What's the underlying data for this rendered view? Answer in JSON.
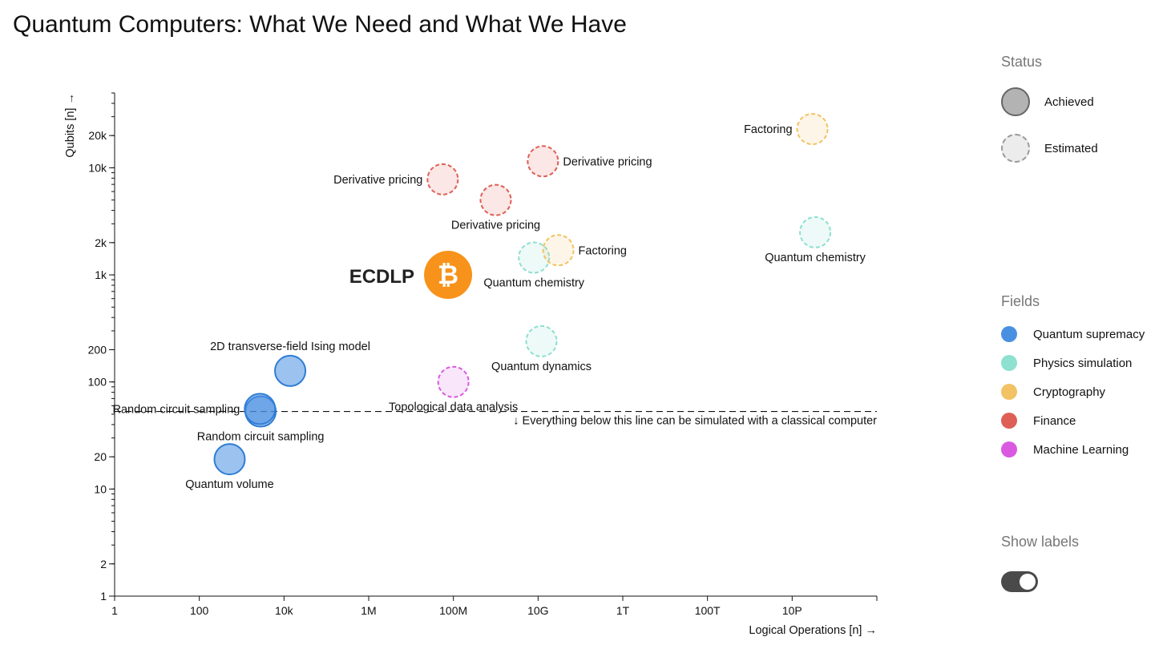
{
  "title": "Quantum Computers: What We Need and What We Have",
  "chart_data": {
    "type": "scatter",
    "title": "Quantum Computers: What We Need and What We Have",
    "xlabel": "Logical Operations [n] →",
    "ylabel": "Qubits [n] →",
    "xscale": "log",
    "yscale": "log",
    "xlim": [
      1,
      1e+18
    ],
    "ylim": [
      1,
      50000
    ],
    "x_ticks": [
      {
        "value": 1,
        "label": "1"
      },
      {
        "value": 100,
        "label": "100"
      },
      {
        "value": 10000,
        "label": "10k"
      },
      {
        "value": 1000000,
        "label": "1M"
      },
      {
        "value": 100000000,
        "label": "100M"
      },
      {
        "value": 10000000000,
        "label": "10G"
      },
      {
        "value": 1000000000000,
        "label": "1T"
      },
      {
        "value": 100000000000000,
        "label": "100T"
      },
      {
        "value": 10000000000000000,
        "label": "10P"
      }
    ],
    "y_ticks": [
      {
        "value": 1,
        "label": "1"
      },
      {
        "value": 2,
        "label": "2"
      },
      {
        "value": 10,
        "label": "10"
      },
      {
        "value": 20,
        "label": "20"
      },
      {
        "value": 100,
        "label": "100"
      },
      {
        "value": 200,
        "label": "200"
      },
      {
        "value": 1000,
        "label": "1k"
      },
      {
        "value": 2000,
        "label": "2k"
      },
      {
        "value": 10000,
        "label": "10k"
      },
      {
        "value": 20000,
        "label": "20k"
      }
    ],
    "threshold": {
      "qubits": 53,
      "label": "↓ Everything below this line can be simulated with a classical computer"
    },
    "annotation": {
      "text": "ECDLP",
      "x": 75000000,
      "y": 1000,
      "icon": "bitcoin-icon",
      "icon_glyph": "₿",
      "icon_color": "#F7931A"
    },
    "points": [
      {
        "label": "Quantum volume",
        "x": 520,
        "y": 19,
        "field": "Quantum supremacy",
        "status": "Achieved",
        "label_pos": "below"
      },
      {
        "label": "Random circuit sampling",
        "x": 2800,
        "y": 53,
        "field": "Quantum supremacy",
        "status": "Achieved",
        "label_pos": "below"
      },
      {
        "label": "Random circuit sampling",
        "x": 2700,
        "y": 56,
        "field": "Quantum supremacy",
        "status": "Achieved",
        "label_pos": "left"
      },
      {
        "label": "2D transverse-field Ising model",
        "x": 14000,
        "y": 127,
        "field": "Quantum supremacy",
        "status": "Achieved",
        "label_pos": "above"
      },
      {
        "label": "Topological data analysis",
        "x": 100000000,
        "y": 100,
        "field": "Machine Learning",
        "status": "Estimated",
        "label_pos": "below"
      },
      {
        "label": "Quantum dynamics",
        "x": 12000000000,
        "y": 240,
        "field": "Physics simulation",
        "status": "Estimated",
        "label_pos": "below"
      },
      {
        "label": "Quantum chemistry",
        "x": 8000000000,
        "y": 1450,
        "field": "Physics simulation",
        "status": "Estimated",
        "label_pos": "below"
      },
      {
        "label": "Factoring",
        "x": 30000000000,
        "y": 1700,
        "field": "Cryptography",
        "status": "Estimated",
        "label_pos": "right"
      },
      {
        "label": "Derivative pricing",
        "x": 1000000000,
        "y": 5000,
        "field": "Finance",
        "status": "Estimated",
        "label_pos": "below"
      },
      {
        "label": "Derivative pricing",
        "x": 56000000,
        "y": 7800,
        "field": "Finance",
        "status": "Estimated",
        "label_pos": "left"
      },
      {
        "label": "Derivative pricing",
        "x": 13000000000,
        "y": 11500,
        "field": "Finance",
        "status": "Estimated",
        "label_pos": "right"
      },
      {
        "label": "Factoring",
        "x": 30000000000000000,
        "y": 23000,
        "field": "Cryptography",
        "status": "Estimated",
        "label_pos": "left"
      },
      {
        "label": "Quantum chemistry",
        "x": 35000000000000000,
        "y": 2500,
        "field": "Physics simulation",
        "status": "Estimated",
        "label_pos": "below"
      }
    ]
  },
  "legend": {
    "status_title": "Status",
    "status": [
      {
        "label": "Achieved",
        "fill": "#b3b3b3",
        "stroke": "#666666",
        "dashed": false
      },
      {
        "label": "Estimated",
        "fill": "#ececec",
        "stroke": "#999999",
        "dashed": true
      }
    ],
    "fields_title": "Fields",
    "fields": [
      {
        "label": "Quantum supremacy",
        "color": "#4a90e2"
      },
      {
        "label": "Physics simulation",
        "color": "#8ee0cf"
      },
      {
        "label": "Cryptography",
        "color": "#f2c264"
      },
      {
        "label": "Finance",
        "color": "#de5f55"
      },
      {
        "label": "Machine Learning",
        "color": "#d95ae0"
      }
    ]
  },
  "toggle": {
    "label": "Show labels",
    "state": "on"
  }
}
